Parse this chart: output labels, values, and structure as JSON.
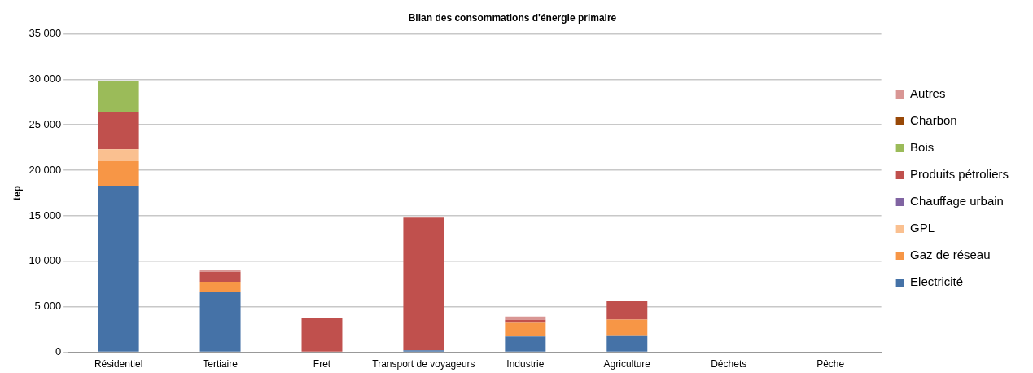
{
  "chart_data": {
    "type": "bar",
    "title": "Bilan des consommations d'énergie primaire",
    "ylabel": "tep",
    "stacked": true,
    "grid": "y",
    "legend": "right",
    "categories": [
      "Résidentiel",
      "Tertiaire",
      "Fret",
      "Transport de voyageurs",
      "Industrie",
      "Agriculture",
      "Déchets",
      "Pêche"
    ],
    "ylim": [
      0,
      35000
    ],
    "yticks": [
      {
        "value": 0,
        "label": "0"
      },
      {
        "value": 5000,
        "label": "5 000"
      },
      {
        "value": 10000,
        "label": "10 000"
      },
      {
        "value": 15000,
        "label": "15 000"
      },
      {
        "value": 20000,
        "label": "20 000"
      },
      {
        "value": 25000,
        "label": "25 000"
      },
      {
        "value": 30000,
        "label": "30 000"
      },
      {
        "value": 35000,
        "label": "35 000"
      }
    ],
    "series": [
      {
        "name": "Electricité",
        "color": "#4572a7",
        "values": [
          18300,
          6650,
          0,
          200,
          1730,
          1860,
          0,
          0
        ]
      },
      {
        "name": "Gaz de réseau",
        "color": "#f79646",
        "values": [
          2700,
          1100,
          0,
          0,
          1590,
          1730,
          0,
          0
        ]
      },
      {
        "name": "GPL",
        "color": "#fac090",
        "values": [
          1300,
          0,
          0,
          0,
          0,
          0,
          0,
          0
        ]
      },
      {
        "name": "Chauffage urbain",
        "color": "#8064a2",
        "values": [
          0,
          0,
          0,
          0,
          0,
          0,
          0,
          0
        ]
      },
      {
        "name": "Produits pétroliers",
        "color": "#c0504d",
        "values": [
          4150,
          1100,
          3770,
          14600,
          250,
          2100,
          0,
          0
        ]
      },
      {
        "name": "Bois",
        "color": "#9bbb59",
        "values": [
          3350,
          0,
          0,
          0,
          0,
          0,
          0,
          0
        ]
      },
      {
        "name": "Charbon",
        "color": "#984807",
        "values": [
          0,
          0,
          0,
          0,
          0,
          0,
          0,
          0
        ]
      },
      {
        "name": "Autres",
        "color": "#d99694",
        "values": [
          0,
          150,
          0,
          0,
          360,
          0,
          0,
          0
        ]
      }
    ]
  }
}
